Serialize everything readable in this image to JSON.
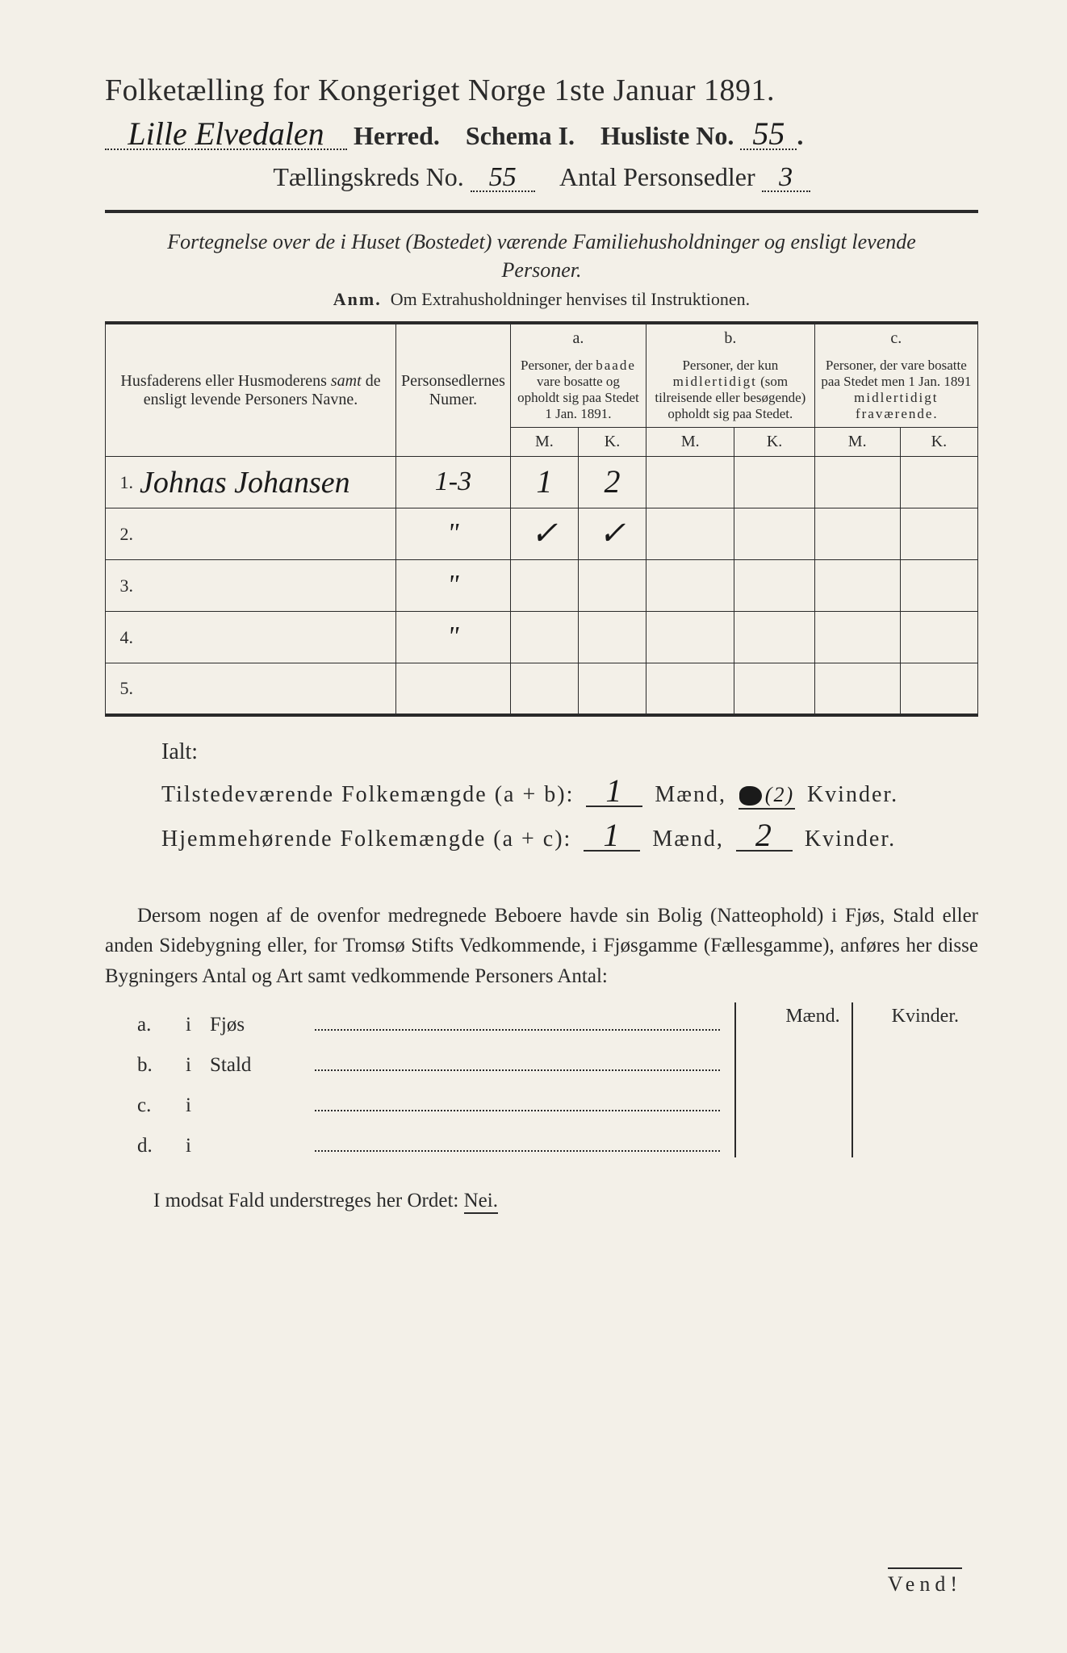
{
  "colors": {
    "paper": "#f3f0e8",
    "ink": "#2a2a2a",
    "hand_ink": "#1a1a1a"
  },
  "typography": {
    "title_fontsize_pt": 28,
    "body_fontsize_pt": 19,
    "hand_fontsize_pt": 30,
    "font_family_print": "Georgia / Times serif",
    "font_family_hand": "cursive script"
  },
  "header": {
    "title": "Folketælling for Kongeriget Norge 1ste Januar 1891.",
    "herred_hand": "Lille Elvedalen",
    "herred_label": "Herred.",
    "schema_label": "Schema I.",
    "husliste_label": "Husliste No.",
    "husliste_no": "55",
    "kreds_label": "Tællingskreds No.",
    "kreds_no": "55",
    "sedler_label": "Antal Personsedler",
    "sedler_no": "3"
  },
  "intro": {
    "text": "Fortegnelse over de i Huset (Bostedet) værende Familiehusholdninger og ensligt levende Personer.",
    "anm": "Om Extrahusholdninger henvises til Instruktionen.",
    "anm_prefix": "Anm."
  },
  "table": {
    "col_name_header": "Husfaderens eller Husmoderens samt de ensligt levende Personers Navne.",
    "col_num_header": "Personsedlernes Numer.",
    "col_a_label": "a.",
    "col_a_header": "Personer, der baade vare bosatte og opholdt sig paa Stedet 1 Jan. 1891.",
    "col_b_label": "b.",
    "col_b_header": "Personer, der kun midlertidigt (som tilreisende eller besøgende) opholdt sig paa Stedet.",
    "col_c_label": "c.",
    "col_c_header": "Personer, der vare bosatte paa Stedet men 1 Jan. 1891 midlertidigt fraværende.",
    "m_label": "M.",
    "k_label": "K.",
    "rows": [
      {
        "n": "1.",
        "name": "Johnas Johansen",
        "num": "1-3",
        "a_m": "1",
        "a_k": "2",
        "b_m": "",
        "b_k": "",
        "c_m": "",
        "c_k": ""
      },
      {
        "n": "2.",
        "name": "",
        "num": "\"",
        "a_m": "✓",
        "a_k": "✓",
        "b_m": "",
        "b_k": "",
        "c_m": "",
        "c_k": ""
      },
      {
        "n": "3.",
        "name": "",
        "num": "\"",
        "a_m": "",
        "a_k": "",
        "b_m": "",
        "b_k": "",
        "c_m": "",
        "c_k": ""
      },
      {
        "n": "4.",
        "name": "",
        "num": "\"",
        "a_m": "",
        "a_k": "",
        "b_m": "",
        "b_k": "",
        "c_m": "",
        "c_k": ""
      },
      {
        "n": "5.",
        "name": "",
        "num": "",
        "a_m": "",
        "a_k": "",
        "b_m": "",
        "b_k": "",
        "c_m": "",
        "c_k": ""
      }
    ]
  },
  "totals": {
    "ialt_label": "Ialt:",
    "present_label": "Tilstedeværende Folkemængde (a + b):",
    "present_m": "1",
    "present_k": "(2)",
    "home_label": "Hjemmehørende Folkemængde (a + c):",
    "home_m": "1",
    "home_k": "2",
    "maend_label": "Mænd,",
    "kvinder_label": "Kvinder."
  },
  "paragraph": {
    "text": "Dersom nogen af de ovenfor medregnede Beboere havde sin Bolig (Natteophold) i Fjøs, Stald eller anden Sidebygning eller, for Tromsø Stifts Vedkommende, i Fjøsgamme (Fællesgamme), anføres her disse Bygningers Antal og Art samt vedkommende Personers Antal:"
  },
  "buildings": {
    "maend": "Mænd.",
    "kvinder": "Kvinder.",
    "rows": [
      {
        "letter": "a.",
        "i": "i",
        "name": "Fjøs"
      },
      {
        "letter": "b.",
        "i": "i",
        "name": "Stald"
      },
      {
        "letter": "c.",
        "i": "i",
        "name": ""
      },
      {
        "letter": "d.",
        "i": "i",
        "name": ""
      }
    ]
  },
  "footer": {
    "nei_line": "I modsat Fald understreges her Ordet:",
    "nei_word": "Nei.",
    "vend": "Vend!"
  }
}
